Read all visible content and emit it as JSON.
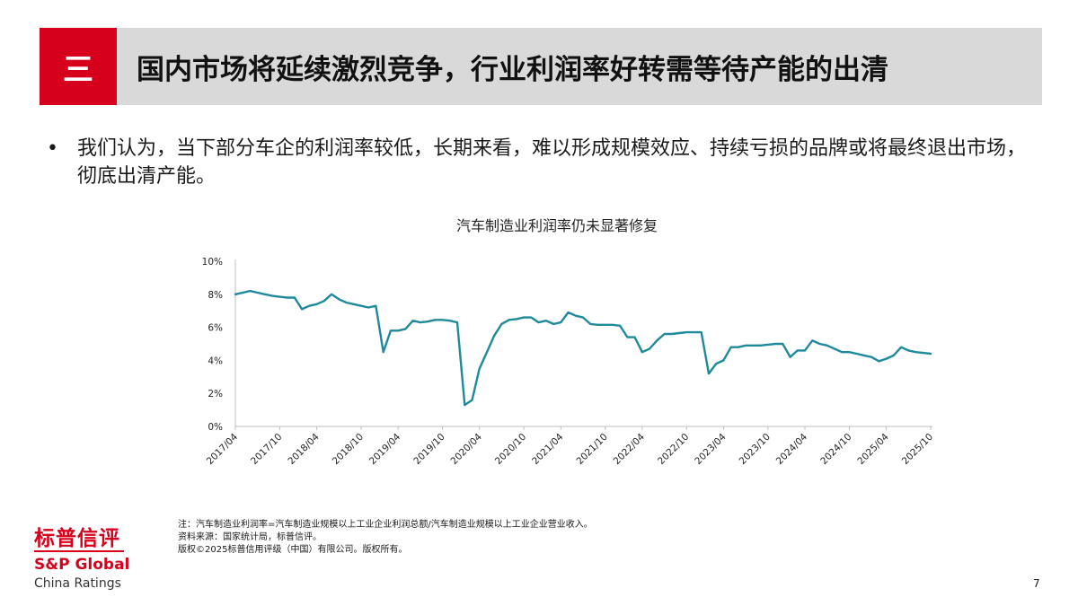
{
  "header": {
    "section_number": "三",
    "title": "国内市场将延续激烈竞争，行业利润率好转需等待产能的出清"
  },
  "body": {
    "bullet_symbol": "•",
    "bullet_text": "我们认为，当下部分车企的利润率较低，长期来看，难以形成规模效应、持续亏损的品牌或将最终退出市场，彻底出清产能。"
  },
  "chart_data": {
    "type": "line",
    "title": "汽车制造业利润率仍未显著修复",
    "xlabel": "",
    "ylabel": "",
    "x": [
      "2017/04",
      "2017/05",
      "2017/06",
      "2017/07",
      "2017/08",
      "2017/09",
      "2017/10",
      "2017/11",
      "2017/12",
      "2018/02",
      "2018/03",
      "2018/04",
      "2018/05",
      "2018/06",
      "2018/07",
      "2018/08",
      "2018/09",
      "2018/10",
      "2018/11",
      "2018/12",
      "2019/02",
      "2019/03",
      "2019/04",
      "2019/05",
      "2019/06",
      "2019/07",
      "2019/08",
      "2019/09",
      "2019/10",
      "2019/11",
      "2019/12",
      "2020/02",
      "2020/03",
      "2020/04",
      "2020/05",
      "2020/06",
      "2020/07",
      "2020/08",
      "2020/09",
      "2020/10",
      "2020/11",
      "2020/12",
      "2021/02",
      "2021/03",
      "2021/04",
      "2021/05",
      "2021/06",
      "2021/07",
      "2021/08",
      "2021/09",
      "2021/10",
      "2021/11",
      "2021/12",
      "2022/02",
      "2022/03",
      "2022/04",
      "2022/05",
      "2022/06",
      "2022/07",
      "2022/08",
      "2022/09",
      "2022/10",
      "2022/11",
      "2022/12",
      "2023/02",
      "2023/03",
      "2023/04",
      "2023/05",
      "2023/06",
      "2023/07",
      "2023/08",
      "2023/09",
      "2023/10",
      "2023/11",
      "2023/12",
      "2024/02",
      "2024/03",
      "2024/04",
      "2024/05",
      "2024/06",
      "2024/07",
      "2024/08",
      "2024/09",
      "2024/10",
      "2024/11",
      "2024/12",
      "2025/02",
      "2025/03",
      "2025/04",
      "2025/05",
      "2025/06",
      "2025/07",
      "2025/08",
      "2025/09",
      "2025/10"
    ],
    "series": [
      {
        "name": "",
        "values": [
          8.0,
          8.1,
          8.2,
          8.1,
          8.0,
          7.9,
          7.85,
          7.8,
          7.8,
          7.1,
          7.3,
          7.4,
          7.6,
          8.0,
          7.7,
          7.5,
          7.4,
          7.3,
          7.2,
          7.3,
          4.5,
          5.8,
          5.8,
          5.9,
          6.4,
          6.3,
          6.35,
          6.45,
          6.45,
          6.4,
          6.3,
          1.3,
          1.6,
          3.5,
          4.5,
          5.5,
          6.2,
          6.45,
          6.5,
          6.6,
          6.6,
          6.3,
          6.4,
          6.2,
          6.3,
          6.9,
          6.7,
          6.6,
          6.2,
          6.15,
          6.15,
          6.15,
          6.1,
          5.4,
          5.4,
          4.5,
          4.7,
          5.2,
          5.6,
          5.6,
          5.65,
          5.7,
          5.7,
          5.7,
          3.2,
          3.8,
          4.0,
          4.8,
          4.8,
          4.9,
          4.9,
          4.9,
          4.95,
          5.0,
          5.0,
          4.2,
          4.6,
          4.6,
          5.2,
          5.0,
          4.9,
          4.7,
          4.5,
          4.5,
          4.4,
          4.3,
          4.2,
          3.95,
          4.1,
          4.3,
          4.8,
          4.6,
          4.5,
          4.45,
          4.4
        ]
      }
    ],
    "x_tick_labels": [
      "2017/04",
      "2017/10",
      "2018/04",
      "2018/10",
      "2019/04",
      "2019/10",
      "2020/04",
      "2020/10",
      "2021/04",
      "2021/10",
      "2022/04",
      "2022/10",
      "2023/04",
      "2023/10",
      "2024/04",
      "2024/10",
      "2025/04",
      "2025/10"
    ],
    "y_tick_labels": [
      "0%",
      "2%",
      "4%",
      "6%",
      "8%",
      "10%"
    ],
    "ylim": [
      0,
      10
    ],
    "y_unit": "%",
    "grid": false,
    "legend": "none",
    "line_color": "#1f8a9b"
  },
  "notes": {
    "line1": "注：汽车制造业利润率=汽车制造业规模以上工业企业利润总额/汽车制造业规模以上工业企业营业收入。",
    "line2": "资料来源：国家统计局，标普信评。",
    "line3": "版权©2025标普信用评级（中国）有限公司。版权所有。"
  },
  "logo": {
    "cn": "标普信评",
    "en": "S&P Global",
    "sub": "China Ratings"
  },
  "page_number": "7"
}
